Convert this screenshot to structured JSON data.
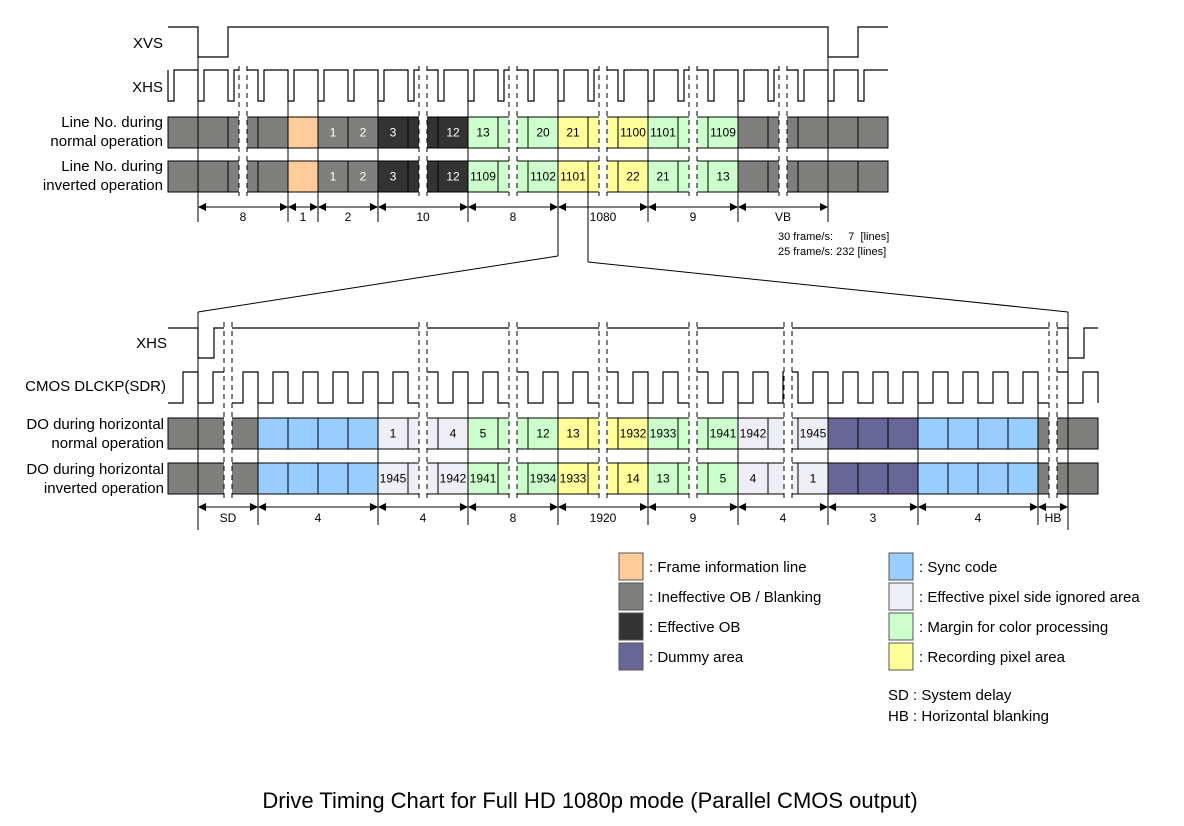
{
  "colors": {
    "frame_info": "#FFCC99",
    "blank": "#7F807D",
    "eff_ob": "#333333",
    "dummy": "#666699",
    "sync": "#99CCFF",
    "ignored": "#EEEEF6",
    "margin": "#CCFFCC",
    "record": "#FFFF99"
  },
  "top": {
    "signals": {
      "xvs": "XVS",
      "xhs": "XHS"
    },
    "row_normal_label": [
      "Line No. during",
      "normal operation"
    ],
    "row_inverted_label": [
      "Line No. during",
      "inverted operation"
    ],
    "types": [
      "blank",
      "blank",
      "blank",
      "blank",
      "frame_info",
      "blank",
      "blank",
      "eff_ob",
      "eff_ob",
      "eff_ob",
      "margin",
      "margin",
      "margin",
      "record",
      "record",
      "record",
      "margin",
      "margin",
      "margin",
      "blank",
      "blank",
      "blank",
      "blank",
      "blank"
    ],
    "normal": [
      "",
      "",
      "",
      "",
      "",
      "1",
      "2",
      "3",
      "",
      "12",
      "13",
      "",
      "20",
      "21",
      "",
      "1100",
      "1101",
      "",
      "1109",
      "",
      "",
      "",
      "",
      ""
    ],
    "inverted": [
      "",
      "",
      "",
      "",
      "",
      "1",
      "2",
      "3",
      "",
      "12",
      "1109",
      "",
      "1102",
      "1101",
      "",
      "22",
      "21",
      "",
      "13",
      "",
      "",
      "",
      "",
      ""
    ],
    "dimensions": [
      "8",
      "1",
      "2",
      "10",
      "8",
      "1080",
      "9",
      "VB"
    ],
    "vb_note": [
      "30 frame/s:     7  [lines]",
      "25 frame/s: 232 [lines]"
    ]
  },
  "bottom": {
    "signals": {
      "xhs": "XHS",
      "dlckp": "CMOS DLCKP(SDR)"
    },
    "row_normal_label": [
      "DO during horizontal",
      "normal operation"
    ],
    "row_inverted_label": [
      "DO during horizontal",
      "inverted operation"
    ],
    "types": [
      "blank",
      "blank",
      "blank",
      "sync",
      "sync",
      "sync",
      "sync",
      "ignored",
      "ignored",
      "ignored",
      "margin",
      "margin",
      "margin",
      "record",
      "record",
      "record",
      "margin",
      "margin",
      "margin",
      "ignored",
      "ignored",
      "ignored",
      "dummy",
      "dummy",
      "dummy",
      "sync",
      "sync",
      "sync",
      "sync",
      "blank",
      "blank"
    ],
    "normal": [
      "",
      "",
      "",
      "",
      "",
      "",
      "",
      "1",
      "",
      "4",
      "5",
      "",
      "12",
      "13",
      "",
      "1932",
      "1933",
      "",
      "1941",
      "1942",
      "",
      "1945",
      "",
      "",
      "",
      "",
      "",
      "",
      "",
      "",
      ""
    ],
    "inverted": [
      "",
      "",
      "",
      "",
      "",
      "",
      "",
      "1945",
      "",
      "1942",
      "1941",
      "",
      "1934",
      "1933",
      "",
      "14",
      "13",
      "",
      "5",
      "4",
      "",
      "1",
      "",
      "",
      "",
      "",
      "",
      "",
      "",
      "",
      ""
    ],
    "dimensions": [
      "SD",
      "4",
      "4",
      "8",
      "1920",
      "9",
      "4",
      "3",
      "4",
      "HB"
    ]
  },
  "legend": {
    "left": [
      {
        "key": "frame_info",
        "label": ": Frame information line"
      },
      {
        "key": "blank",
        "label": ": Ineffective OB / Blanking"
      },
      {
        "key": "eff_ob",
        "label": ": Effective OB"
      },
      {
        "key": "dummy",
        "label": ": Dummy area"
      }
    ],
    "right": [
      {
        "key": "sync",
        "label": ": Sync code"
      },
      {
        "key": "ignored",
        "label": ": Effective pixel side ignored area"
      },
      {
        "key": "margin",
        "label": ": Margin for color processing"
      },
      {
        "key": "record",
        "label": ": Recording pixel area"
      }
    ],
    "abbreviations": [
      "SD : System delay",
      "HB : Horizontal blanking"
    ]
  },
  "caption": "Drive Timing Chart for Full HD 1080p mode (Parallel CMOS output)"
}
